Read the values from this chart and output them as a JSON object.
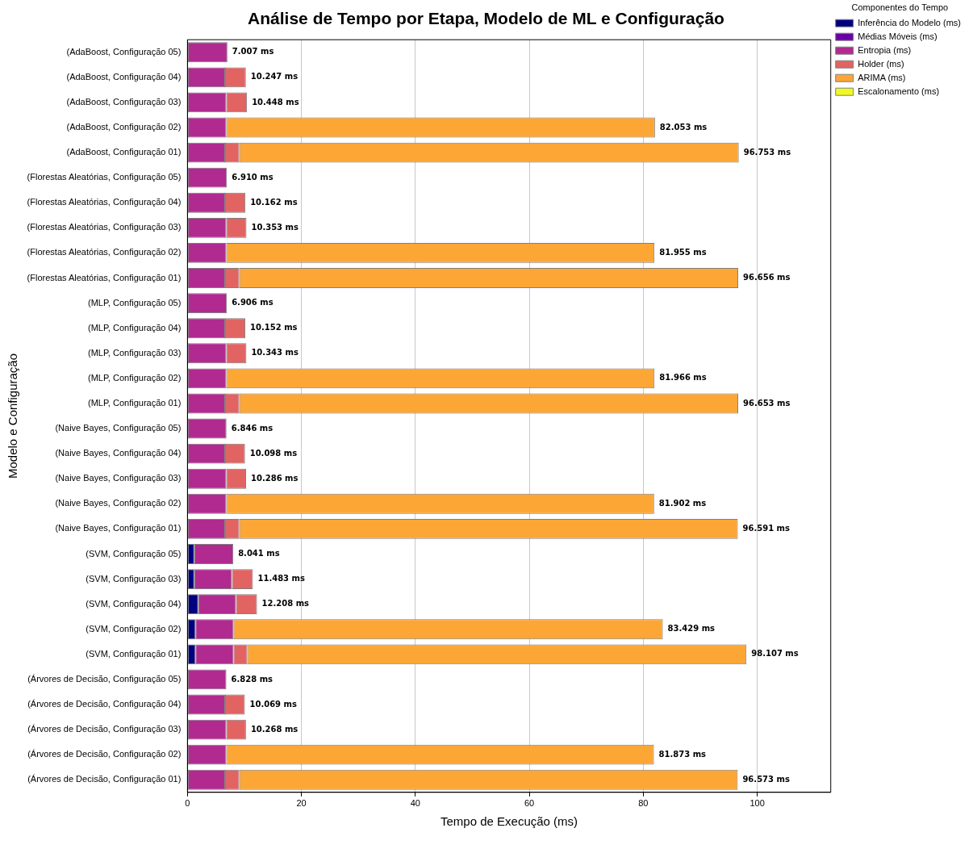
{
  "chart_data": {
    "type": "bar",
    "orientation": "horizontal",
    "stacked": true,
    "title": "Análise de Tempo por Etapa, Modelo de ML e Configuração",
    "xlabel": "Tempo de Execução (ms)",
    "ylabel": "Modelo e Configuração",
    "legend_title": "Componentes do Tempo",
    "legend": "top right",
    "grid": "x",
    "xlim": [
      0,
      112.9
    ],
    "xticks": [
      0,
      20,
      40,
      60,
      80,
      100
    ],
    "categories": [
      "(AdaBoost, Configuração 05)",
      "(AdaBoost, Configuração 04)",
      "(AdaBoost, Configuração 03)",
      "(AdaBoost, Configuração 02)",
      "(AdaBoost, Configuração 01)",
      "(Florestas Aleatórias, Configuração 05)",
      "(Florestas Aleatórias, Configuração 04)",
      "(Florestas Aleatórias, Configuração 03)",
      "(Florestas Aleatórias, Configuração 02)",
      "(Florestas Aleatórias, Configuração 01)",
      "(MLP, Configuração 05)",
      "(MLP, Configuração 04)",
      "(MLP, Configuração 03)",
      "(MLP, Configuração 02)",
      "(MLP, Configuração 01)",
      "(Naive Bayes, Configuração 05)",
      "(Naive Bayes, Configuração 04)",
      "(Naive Bayes, Configuração 03)",
      "(Naive Bayes, Configuração 02)",
      "(Naive Bayes, Configuração 01)",
      "(SVM, Configuração 05)",
      "(SVM, Configuração 03)",
      "(SVM, Configuração 04)",
      "(SVM, Configuração 02)",
      "(SVM, Configuração 01)",
      "(Árvores de Decisão, Configuração 05)",
      "(Árvores de Decisão, Configuração 04)",
      "(Árvores de Decisão, Configuração 03)",
      "(Árvores de Decisão, Configuração 02)",
      "(Árvores de Decisão, Configuração 01)"
    ],
    "series": [
      {
        "name": "Inferência do Modelo (ms)",
        "color": "#000080",
        "values": [
          0,
          0,
          0,
          0,
          0,
          0,
          0,
          0,
          0,
          0,
          0,
          0,
          0,
          0,
          0,
          0,
          0,
          0,
          0,
          0,
          1.2,
          1.2,
          1.9,
          1.4,
          1.4,
          0,
          0,
          0,
          0,
          0
        ]
      },
      {
        "name": "Médias Móveis (ms)",
        "color": "#6a00a8",
        "values": [
          0,
          0,
          0,
          0,
          0,
          0,
          0,
          0,
          0,
          0,
          0,
          0,
          0,
          0,
          0,
          0,
          0,
          0,
          0,
          0,
          0,
          0,
          0,
          0,
          0,
          0,
          0,
          0,
          0,
          0
        ]
      },
      {
        "name": "Entropia (ms)",
        "color": "#b12a90",
        "values": [
          7.007,
          6.6,
          6.8,
          6.8,
          6.6,
          6.91,
          6.6,
          6.8,
          6.8,
          6.6,
          6.906,
          6.6,
          6.8,
          6.8,
          6.6,
          6.846,
          6.6,
          6.8,
          6.8,
          6.6,
          6.841,
          6.6,
          6.6,
          6.7,
          6.7,
          6.828,
          6.6,
          6.8,
          6.8,
          6.6
        ]
      },
      {
        "name": "Holder (ms)",
        "color": "#e16462",
        "values": [
          0,
          3.647,
          3.648,
          0,
          2.5,
          0,
          3.562,
          3.553,
          0,
          2.5,
          0,
          3.552,
          3.543,
          0,
          2.5,
          0,
          3.498,
          3.486,
          0,
          2.5,
          0,
          3.683,
          3.708,
          0,
          2.4,
          0,
          3.469,
          3.468,
          0,
          2.5
        ]
      },
      {
        "name": "ARIMA (ms)",
        "color": "#fca636",
        "values": [
          0,
          0,
          0,
          75.253,
          87.653,
          0,
          0,
          0,
          75.155,
          87.556,
          0,
          0,
          0,
          75.166,
          87.553,
          0,
          0,
          0,
          75.102,
          87.491,
          0,
          0,
          0,
          75.329,
          87.607,
          0,
          0,
          0,
          75.073,
          87.473
        ]
      },
      {
        "name": "Escalonamento (ms)",
        "color": "#f0f921",
        "values": [
          0,
          0,
          0,
          0,
          0,
          0,
          0,
          0,
          0,
          0,
          0,
          0,
          0,
          0,
          0,
          0,
          0,
          0,
          0,
          0,
          0,
          0,
          0,
          0,
          0,
          0,
          0,
          0,
          0,
          0
        ]
      }
    ],
    "totals": [
      "7.007 ms",
      "10.247 ms",
      "10.448 ms",
      "82.053 ms",
      "96.753 ms",
      "6.910 ms",
      "10.162 ms",
      "10.353 ms",
      "81.955 ms",
      "96.656 ms",
      "6.906 ms",
      "10.152 ms",
      "10.343 ms",
      "81.966 ms",
      "96.653 ms",
      "6.846 ms",
      "10.098 ms",
      "10.286 ms",
      "81.902 ms",
      "96.591 ms",
      "8.041 ms",
      "11.483 ms",
      "12.208 ms",
      "83.429 ms",
      "98.107 ms",
      "6.828 ms",
      "10.069 ms",
      "10.268 ms",
      "81.873 ms",
      "96.573 ms"
    ]
  }
}
